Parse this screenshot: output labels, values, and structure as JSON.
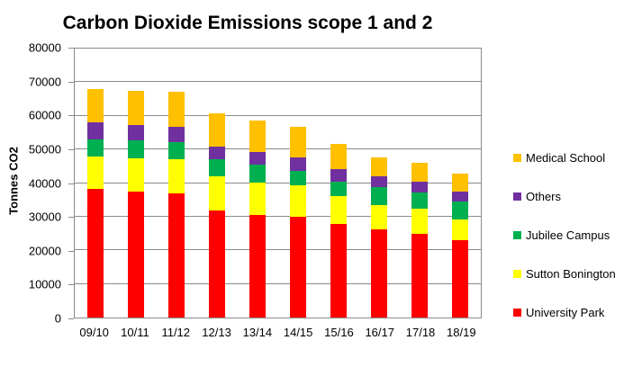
{
  "chart_data": {
    "type": "bar",
    "stacked": true,
    "title": "Carbon Dioxide Emissions scope 1 and 2",
    "xlabel": "",
    "ylabel": "Tonnes CO2",
    "ylim": [
      0,
      80000
    ],
    "ytick_step": 10000,
    "yticks": [
      "0",
      "10000",
      "20000",
      "30000",
      "40000",
      "50000",
      "60000",
      "70000",
      "80000"
    ],
    "grid": "horizontal",
    "legend_position": "right",
    "categories": [
      "09/10",
      "10/11",
      "11/12",
      "12/13",
      "13/14",
      "14/15",
      "15/16",
      "16/17",
      "17/18",
      "18/19"
    ],
    "series": [
      {
        "name": "University Park",
        "color": "#FF0000",
        "values": [
          38200,
          37400,
          36800,
          31900,
          30500,
          29900,
          27900,
          26100,
          25000,
          23100
        ]
      },
      {
        "name": "Sutton Bonington",
        "color": "#FFFF00",
        "values": [
          9800,
          10000,
          10200,
          10100,
          9600,
          9500,
          8200,
          7300,
          7300,
          6100
        ]
      },
      {
        "name": "Jubilee Campus",
        "color": "#00B050",
        "values": [
          5000,
          5200,
          5300,
          5100,
          5300,
          4200,
          4400,
          5500,
          5000,
          5400
        ]
      },
      {
        "name": "Others",
        "color": "#7030A0",
        "values": [
          5200,
          4700,
          4400,
          3700,
          3800,
          4000,
          3600,
          3200,
          3000,
          2800
        ]
      },
      {
        "name": "Medical School",
        "color": "#FFC000",
        "values": [
          9800,
          10000,
          10400,
          9900,
          9500,
          9100,
          7500,
          5500,
          5800,
          5300
        ]
      }
    ],
    "totals": [
      68000,
      67300,
      67100,
      60700,
      58700,
      56700,
      51600,
      47600,
      46100,
      42700
    ]
  },
  "legend": [
    {
      "label": "Medical School",
      "color": "#FFC000"
    },
    {
      "label": "Others",
      "color": "#7030A0"
    },
    {
      "label": "Jubilee Campus",
      "color": "#00B050"
    },
    {
      "label": "Sutton Bonington",
      "color": "#FFFF00"
    },
    {
      "label": "University Park",
      "color": "#FF0000"
    }
  ],
  "colors": {
    "gridline": "#8a8a8a",
    "axis": "#8a8a8a",
    "text": "#000000",
    "background": "#ffffff"
  }
}
